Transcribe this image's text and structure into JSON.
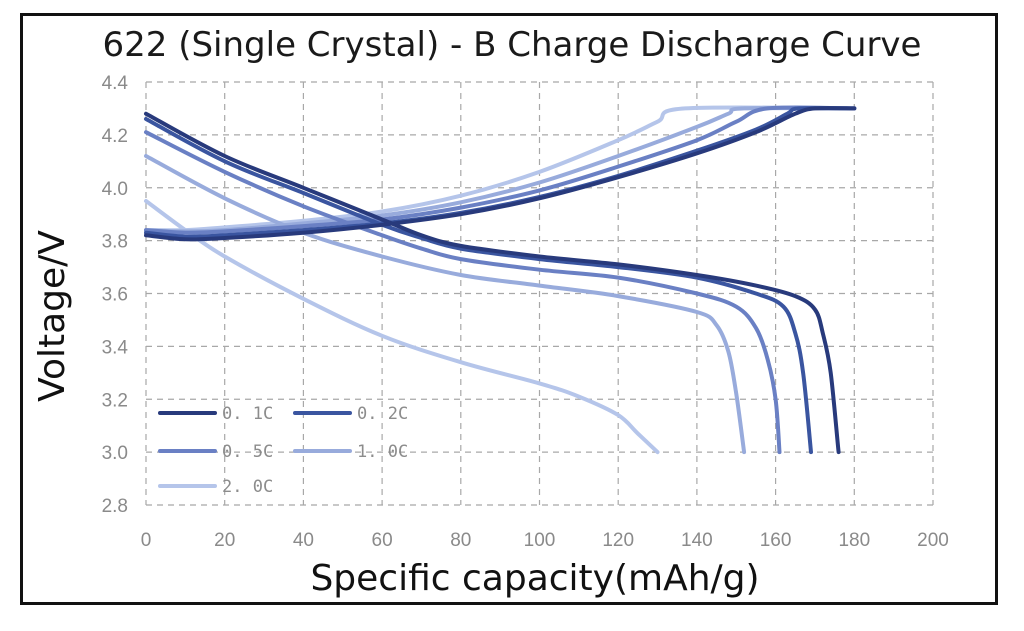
{
  "chart_data": {
    "type": "line",
    "title": "622 (Single Crystal) - B Charge Discharge Curve",
    "xlabel": "Specific capacity(mAh/g)",
    "ylabel": "Voltage/V",
    "xlim": [
      0,
      200
    ],
    "ylim": [
      2.8,
      4.4
    ],
    "xticks": [
      "0",
      "20",
      "40",
      "60",
      "80",
      "100",
      "120",
      "140",
      "160",
      "180",
      "200"
    ],
    "yticks": [
      "2.8",
      "3.0",
      "3.2",
      "3.4",
      "3.6",
      "3.8",
      "4.0",
      "4.2",
      "4.4"
    ],
    "grid": true,
    "legend_position": "bottom-left",
    "series": [
      {
        "name": "0. 1C",
        "color": "#283a7c",
        "charge": [
          [
            0,
            3.82
          ],
          [
            10,
            3.805
          ],
          [
            20,
            3.81
          ],
          [
            40,
            3.83
          ],
          [
            60,
            3.86
          ],
          [
            80,
            3.9
          ],
          [
            100,
            3.96
          ],
          [
            120,
            4.04
          ],
          [
            140,
            4.13
          ],
          [
            155,
            4.21
          ],
          [
            165,
            4.28
          ],
          [
            170,
            4.3
          ],
          [
            180,
            4.3
          ]
        ],
        "discharge": [
          [
            0,
            4.28
          ],
          [
            20,
            4.12
          ],
          [
            40,
            4.0
          ],
          [
            60,
            3.88
          ],
          [
            70,
            3.82
          ],
          [
            80,
            3.78
          ],
          [
            100,
            3.74
          ],
          [
            120,
            3.71
          ],
          [
            140,
            3.67
          ],
          [
            155,
            3.63
          ],
          [
            165,
            3.59
          ],
          [
            170,
            3.54
          ],
          [
            172,
            3.45
          ],
          [
            174,
            3.3
          ],
          [
            176,
            3.0
          ]
        ]
      },
      {
        "name": "0. 2C",
        "color": "#3a55a0",
        "charge": [
          [
            0,
            3.83
          ],
          [
            10,
            3.815
          ],
          [
            20,
            3.82
          ],
          [
            40,
            3.84
          ],
          [
            60,
            3.865
          ],
          [
            80,
            3.905
          ],
          [
            100,
            3.965
          ],
          [
            120,
            4.045
          ],
          [
            140,
            4.14
          ],
          [
            155,
            4.22
          ],
          [
            163,
            4.28
          ],
          [
            166,
            4.3
          ],
          [
            180,
            4.3
          ]
        ],
        "discharge": [
          [
            0,
            4.26
          ],
          [
            20,
            4.1
          ],
          [
            40,
            3.98
          ],
          [
            60,
            3.86
          ],
          [
            70,
            3.81
          ],
          [
            80,
            3.77
          ],
          [
            100,
            3.73
          ],
          [
            120,
            3.7
          ],
          [
            140,
            3.66
          ],
          [
            155,
            3.6
          ],
          [
            162,
            3.55
          ],
          [
            165,
            3.45
          ],
          [
            167,
            3.3
          ],
          [
            169,
            3.0
          ]
        ]
      },
      {
        "name": "0. 5C",
        "color": "#6a80c4",
        "charge": [
          [
            0,
            3.84
          ],
          [
            10,
            3.83
          ],
          [
            20,
            3.835
          ],
          [
            40,
            3.855
          ],
          [
            60,
            3.88
          ],
          [
            80,
            3.925
          ],
          [
            100,
            3.99
          ],
          [
            120,
            4.08
          ],
          [
            140,
            4.18
          ],
          [
            150,
            4.25
          ],
          [
            158,
            4.3
          ],
          [
            180,
            4.3
          ]
        ],
        "discharge": [
          [
            0,
            4.21
          ],
          [
            20,
            4.06
          ],
          [
            40,
            3.93
          ],
          [
            60,
            3.82
          ],
          [
            70,
            3.77
          ],
          [
            80,
            3.73
          ],
          [
            100,
            3.69
          ],
          [
            120,
            3.66
          ],
          [
            140,
            3.6
          ],
          [
            150,
            3.55
          ],
          [
            155,
            3.47
          ],
          [
            158,
            3.35
          ],
          [
            160,
            3.2
          ],
          [
            161,
            3.0
          ]
        ]
      },
      {
        "name": "1. 0C",
        "color": "#98abdc",
        "charge": [
          [
            0,
            3.84
          ],
          [
            10,
            3.835
          ],
          [
            20,
            3.84
          ],
          [
            40,
            3.865
          ],
          [
            60,
            3.895
          ],
          [
            80,
            3.945
          ],
          [
            100,
            4.02
          ],
          [
            120,
            4.12
          ],
          [
            140,
            4.23
          ],
          [
            148,
            4.28
          ],
          [
            152,
            4.3
          ],
          [
            180,
            4.3
          ]
        ],
        "discharge": [
          [
            0,
            4.12
          ],
          [
            20,
            3.96
          ],
          [
            40,
            3.83
          ],
          [
            60,
            3.74
          ],
          [
            80,
            3.67
          ],
          [
            100,
            3.63
          ],
          [
            120,
            3.59
          ],
          [
            140,
            3.53
          ],
          [
            145,
            3.48
          ],
          [
            148,
            3.38
          ],
          [
            150,
            3.22
          ],
          [
            152,
            3.0
          ]
        ]
      },
      {
        "name": "2. 0C",
        "color": "#b5c5ea",
        "charge": [
          [
            0,
            3.84
          ],
          [
            10,
            3.84
          ],
          [
            20,
            3.85
          ],
          [
            40,
            3.875
          ],
          [
            60,
            3.91
          ],
          [
            80,
            3.97
          ],
          [
            100,
            4.06
          ],
          [
            120,
            4.18
          ],
          [
            130,
            4.25
          ],
          [
            137,
            4.3
          ],
          [
            180,
            4.3
          ]
        ],
        "discharge": [
          [
            0,
            3.95
          ],
          [
            10,
            3.84
          ],
          [
            20,
            3.74
          ],
          [
            40,
            3.58
          ],
          [
            60,
            3.44
          ],
          [
            80,
            3.34
          ],
          [
            100,
            3.26
          ],
          [
            110,
            3.21
          ],
          [
            120,
            3.14
          ],
          [
            125,
            3.07
          ],
          [
            130,
            3.0
          ]
        ]
      }
    ]
  }
}
